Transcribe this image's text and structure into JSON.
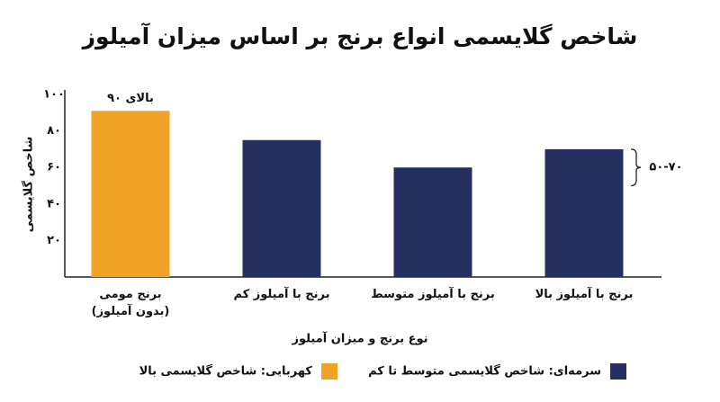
{
  "chart_data": {
    "type": "bar",
    "title": "شاخص گلایسمی انواع برنج بر اساس میزان آمیلوز",
    "y_label": "شاخص گلایسمی",
    "x_label": "نوع برنج و میزان آمیلوز",
    "categories": [
      "برنج مومی\n(بدون آمیلوز)",
      "برنج با آمیلوز کم",
      "برنج با آمیلوز متوسط",
      "برنج با آمیلوز بالا"
    ],
    "series": [
      {
        "name": "کهربایی: شاخص گلایسمی بالا",
        "color": "#f0a324",
        "values": [
          91,
          null,
          null,
          null
        ]
      },
      {
        "name": "سرمه‌ای: شاخص گلایسمی متوسط تا کم",
        "color": "#26305e",
        "values": [
          null,
          75,
          60,
          70
        ]
      }
    ],
    "ylim": [
      0,
      100
    ],
    "yticks": [
      {
        "value": 20,
        "label": "۲۰"
      },
      {
        "value": 40,
        "label": "۴۰"
      },
      {
        "value": 60,
        "label": "۶۰"
      },
      {
        "value": 80,
        "label": "۸۰"
      },
      {
        "value": 100,
        "label": "۱۰۰"
      }
    ],
    "annotations": [
      {
        "text": "بالای ۹۰"
      },
      {
        "text": "۵۰-۷۰",
        "range": [
          50,
          70
        ]
      }
    ]
  }
}
